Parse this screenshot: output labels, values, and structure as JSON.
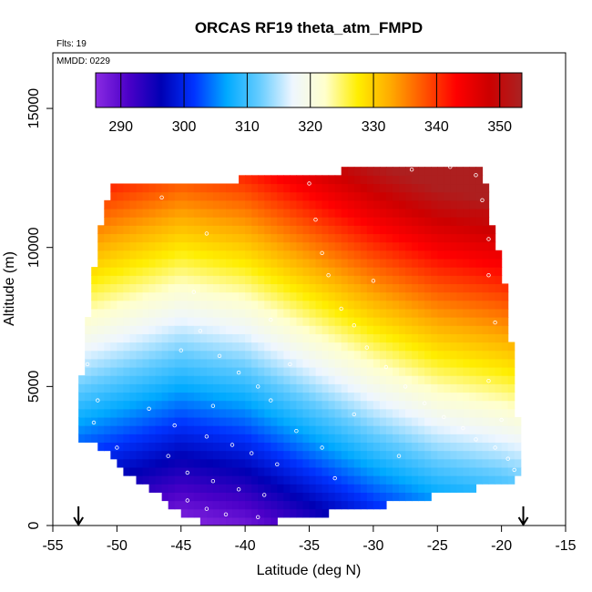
{
  "chart_data": {
    "type": "heatmap",
    "title": "ORCAS RF19 theta_atm_FMPD",
    "annotations": {
      "flights": "Flts: 19",
      "date": "MMDD: 0229"
    },
    "xlabel": "Latitude (deg N)",
    "ylabel": "Altitude (m)",
    "xlim": [
      -55,
      -15
    ],
    "ylim": [
      0,
      17000
    ],
    "xticks": [
      -55,
      -50,
      -45,
      -40,
      -35,
      -30,
      -25,
      -20,
      -15
    ],
    "yticks": [
      0,
      5000,
      10000,
      15000
    ],
    "grid": false,
    "colorbar": {
      "orientation": "horizontal",
      "placement": "top-inside",
      "range": [
        286,
        353.5
      ],
      "ticks": [
        290,
        300,
        310,
        320,
        330,
        340,
        350
      ],
      "label_values": [
        "290",
        "300",
        "310",
        "320",
        "330",
        "340",
        "350"
      ],
      "colors": [
        "#8a2be2",
        "#4b00c8",
        "#0000b4",
        "#0033ff",
        "#00aaff",
        "#66ccff",
        "#eef6ff",
        "#ffffcc",
        "#ffee00",
        "#ffaa00",
        "#ff5500",
        "#ff0000",
        "#cc0000",
        "#aa2222"
      ]
    },
    "field": {
      "description_values": "potential temperature (K)",
      "surface_theta_at_lat": {
        "lats": [
          -53,
          -45,
          -40,
          -35,
          -30,
          -25,
          -20,
          -18.3
        ],
        "values": [
          291,
          286,
          288,
          293,
          298,
          302,
          304,
          305
        ]
      },
      "lapse_K_per_km": 4.2,
      "tropopause_theta": 350,
      "domain_latitude_range": [
        -53,
        -18.3
      ],
      "bottom_altitude_at_lat": {
        "lats": [
          -53,
          -52,
          -50,
          -48,
          -45,
          -43,
          -40,
          -37,
          -33,
          -28,
          -23,
          -20,
          -18.3
        ],
        "values": [
          3000,
          3200,
          2200,
          1500,
          500,
          0,
          0,
          200,
          500,
          800,
          1300,
          1500,
          1800
        ]
      },
      "top_altitude_at_lat": {
        "lats": [
          -51,
          -45,
          -41,
          -39,
          -35,
          -30,
          -25,
          -21.5,
          -19.8
        ],
        "values": [
          12300,
          12400,
          12400,
          12600,
          12700,
          12800,
          12900,
          13000,
          10000
        ]
      },
      "left_altitude_profile": {
        "alts": [
          3000,
          5000,
          7000,
          9000,
          11000,
          12300
        ],
        "lats": [
          -53,
          -52.8,
          -52.4,
          -51.8,
          -51.2,
          -50.5
        ]
      },
      "right_altitude_profile": {
        "alts": [
          1800,
          3000,
          5000,
          7000,
          9000,
          11000,
          13000
        ],
        "lats": [
          -18.3,
          -18.6,
          -19,
          -19.3,
          -19.8,
          -20.8,
          -21.5
        ]
      }
    },
    "flight_markers": {
      "description": "measurement locations (white open circles)",
      "points": [
        [
          -46.5,
          11800
        ],
        [
          -43,
          10500
        ],
        [
          -44,
          8400
        ],
        [
          -43.5,
          7000
        ],
        [
          -45,
          6300
        ],
        [
          -42,
          6100
        ],
        [
          -40.5,
          5500
        ],
        [
          -39,
          5000
        ],
        [
          -38,
          4500
        ],
        [
          -42.5,
          4300
        ],
        [
          -45.5,
          3600
        ],
        [
          -43,
          3200
        ],
        [
          -41,
          2900
        ],
        [
          -39.5,
          2600
        ],
        [
          -37.5,
          2200
        ],
        [
          -46,
          2500
        ],
        [
          -44.5,
          1900
        ],
        [
          -42.5,
          1600
        ],
        [
          -40.5,
          1300
        ],
        [
          -38.5,
          1100
        ],
        [
          -44.5,
          900
        ],
        [
          -43,
          600
        ],
        [
          -41.5,
          400
        ],
        [
          -39,
          300
        ],
        [
          -37,
          150
        ],
        [
          -35,
          12300
        ],
        [
          -34.5,
          11000
        ],
        [
          -34,
          9800
        ],
        [
          -33.5,
          9000
        ],
        [
          -32.5,
          7800
        ],
        [
          -31.5,
          7200
        ],
        [
          -30.5,
          6400
        ],
        [
          -29,
          5700
        ],
        [
          -27.5,
          5000
        ],
        [
          -26,
          4400
        ],
        [
          -24.5,
          3900
        ],
        [
          -23,
          3500
        ],
        [
          -22,
          3100
        ],
        [
          -20.5,
          2800
        ],
        [
          -19.5,
          2400
        ],
        [
          -19,
          2000
        ],
        [
          -20,
          3800
        ],
        [
          -21,
          5200
        ],
        [
          -20.5,
          7300
        ],
        [
          -21,
          9000
        ],
        [
          -21,
          10300
        ],
        [
          -21.5,
          11700
        ],
        [
          -22,
          12600
        ],
        [
          -47,
          12500
        ],
        [
          -49,
          12400
        ],
        [
          -51.5,
          4500
        ],
        [
          -51.8,
          3700
        ],
        [
          -52.3,
          5800
        ],
        [
          -50,
          2800
        ],
        [
          -47.5,
          4200
        ],
        [
          -36,
          3400
        ],
        [
          -34,
          2800
        ],
        [
          -31.5,
          4000
        ],
        [
          -28,
          2500
        ],
        [
          -33,
          1700
        ],
        [
          -27,
          12800
        ],
        [
          -24,
          12900
        ],
        [
          -38,
          7400
        ],
        [
          -36.5,
          5800
        ],
        [
          -30,
          8800
        ]
      ]
    },
    "arrows_at_latitude": [
      -53,
      -18.3
    ]
  }
}
